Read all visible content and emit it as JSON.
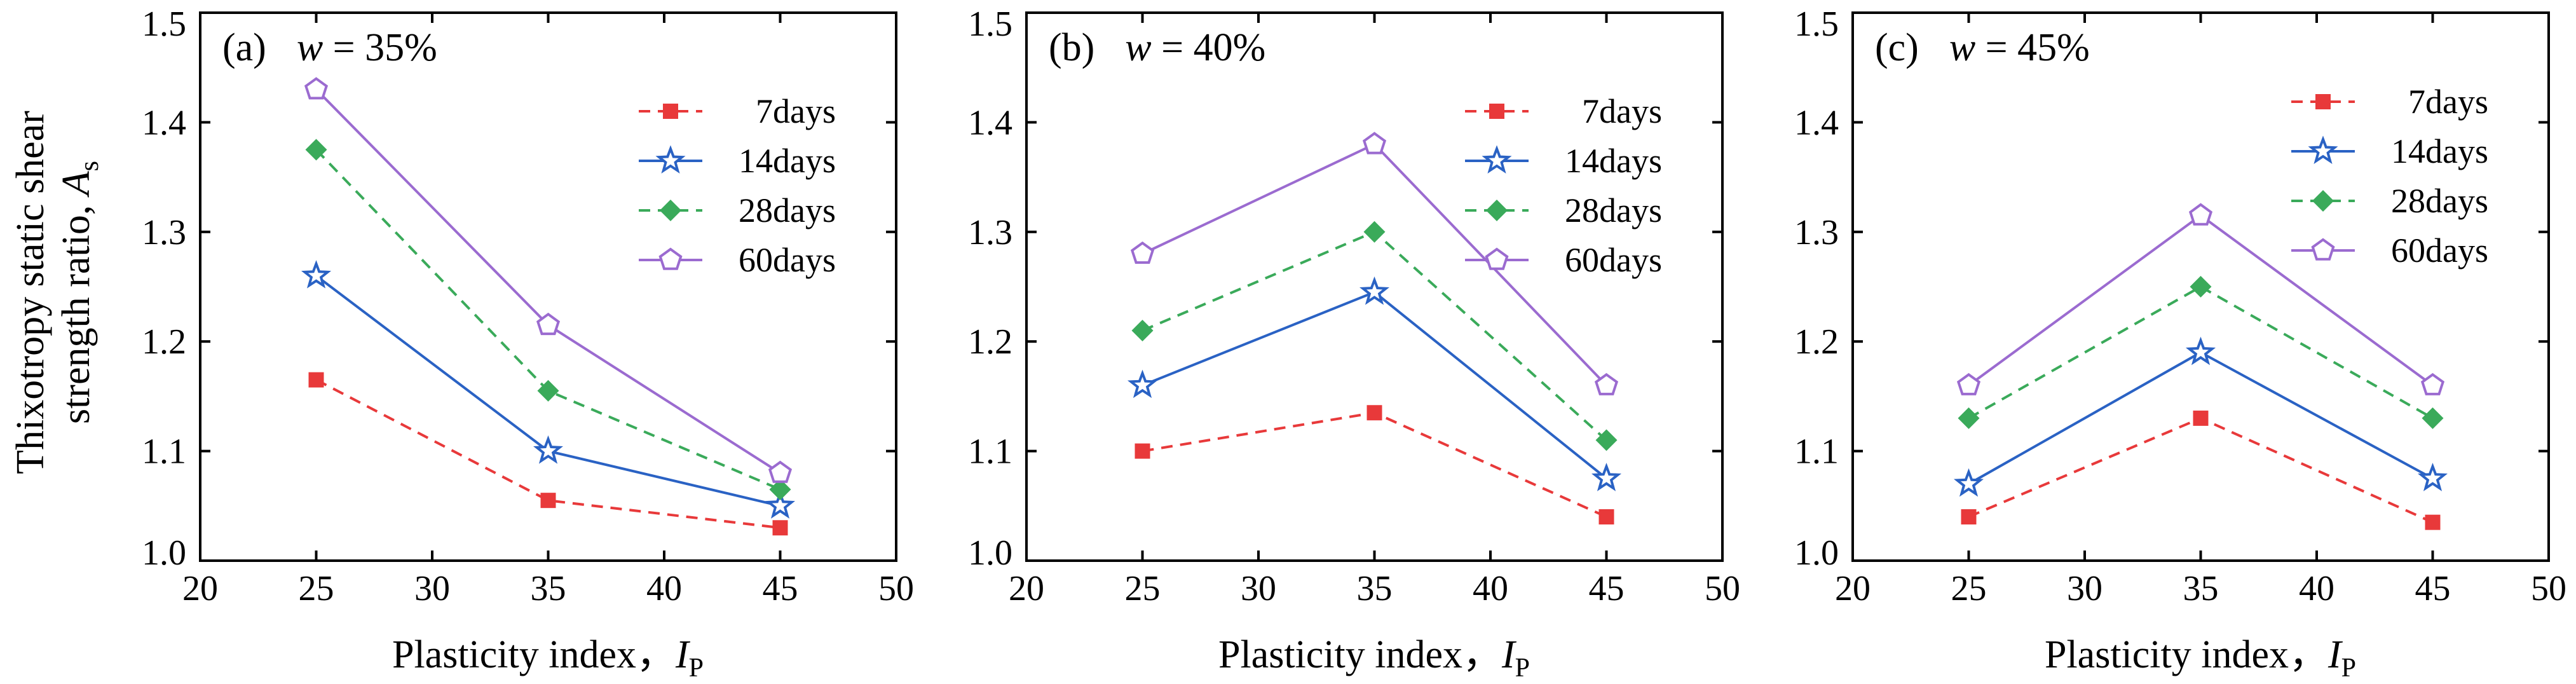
{
  "chart_data": [
    {
      "type": "line",
      "panel_label": "(a)",
      "variable": "w",
      "equals": " = ",
      "value_text": "35%",
      "xlabel": "Plasticity index，",
      "xlabel_symbol": "I",
      "xlabel_sub": "P",
      "ylabel_line1": "Thixotropy static shear",
      "ylabel_line2": "strength ratio, ",
      "ylabel_symbol": "A",
      "ylabel_sub": "s",
      "xlim": [
        20,
        50
      ],
      "ylim": [
        1.0,
        1.5
      ],
      "xticks": [
        "20",
        "25",
        "30",
        "35",
        "40",
        "45",
        "50"
      ],
      "yticks": [
        "1.0",
        "1.1",
        "1.2",
        "1.3",
        "1.4",
        "1.5"
      ],
      "x": [
        25,
        35,
        45
      ],
      "series": [
        {
          "name": "7days",
          "values": [
            1.165,
            1.055,
            1.03
          ],
          "color": "#e8393a",
          "marker": "square",
          "dash": "dashed"
        },
        {
          "name": "14days",
          "values": [
            1.26,
            1.1,
            1.05
          ],
          "color": "#2a62c4",
          "marker": "star",
          "dash": "solid"
        },
        {
          "name": "28days",
          "values": [
            1.375,
            1.155,
            1.065
          ],
          "color": "#3aaa5a",
          "marker": "diamond",
          "dash": "dashed"
        },
        {
          "name": "60days",
          "values": [
            1.43,
            1.215,
            1.08
          ],
          "color": "#9b6bd0",
          "marker": "pentagon",
          "dash": "solid"
        }
      ]
    },
    {
      "type": "line",
      "panel_label": "(b)",
      "variable": "w",
      "equals": " = ",
      "value_text": "40%",
      "xlabel": "Plasticity index，",
      "xlabel_symbol": "I",
      "xlabel_sub": "P",
      "xlim": [
        20,
        50
      ],
      "ylim": [
        1.0,
        1.5
      ],
      "xticks": [
        "20",
        "25",
        "30",
        "35",
        "40",
        "45",
        "50"
      ],
      "yticks": [
        "1.0",
        "1.1",
        "1.2",
        "1.3",
        "1.4",
        "1.5"
      ],
      "x": [
        25,
        35,
        45
      ],
      "series": [
        {
          "name": "7days",
          "values": [
            1.1,
            1.135,
            1.04
          ],
          "color": "#e8393a",
          "marker": "square",
          "dash": "dashed"
        },
        {
          "name": "14days",
          "values": [
            1.16,
            1.245,
            1.075
          ],
          "color": "#2a62c4",
          "marker": "star",
          "dash": "solid"
        },
        {
          "name": "28days",
          "values": [
            1.21,
            1.3,
            1.11
          ],
          "color": "#3aaa5a",
          "marker": "diamond",
          "dash": "dashed"
        },
        {
          "name": "60days",
          "values": [
            1.28,
            1.38,
            1.16
          ],
          "color": "#9b6bd0",
          "marker": "pentagon",
          "dash": "solid"
        }
      ]
    },
    {
      "type": "line",
      "panel_label": "(c)",
      "variable": "w",
      "equals": " = ",
      "value_text": "45%",
      "xlabel": "Plasticity index，",
      "xlabel_symbol": "I",
      "xlabel_sub": "P",
      "xlim": [
        20,
        50
      ],
      "ylim": [
        1.0,
        1.5
      ],
      "xticks": [
        "20",
        "25",
        "30",
        "35",
        "40",
        "45",
        "50"
      ],
      "yticks": [
        "1.0",
        "1.1",
        "1.2",
        "1.3",
        "1.4",
        "1.5"
      ],
      "x": [
        25,
        35,
        45
      ],
      "series": [
        {
          "name": "7days",
          "values": [
            1.04,
            1.13,
            1.035
          ],
          "color": "#e8393a",
          "marker": "square",
          "dash": "dashed"
        },
        {
          "name": "14days",
          "values": [
            1.07,
            1.19,
            1.075
          ],
          "color": "#2a62c4",
          "marker": "star",
          "dash": "solid"
        },
        {
          "name": "28days",
          "values": [
            1.13,
            1.25,
            1.13
          ],
          "color": "#3aaa5a",
          "marker": "diamond",
          "dash": "dashed"
        },
        {
          "name": "60days",
          "values": [
            1.16,
            1.315,
            1.16
          ],
          "color": "#9b6bd0",
          "marker": "pentagon",
          "dash": "solid"
        }
      ]
    }
  ]
}
